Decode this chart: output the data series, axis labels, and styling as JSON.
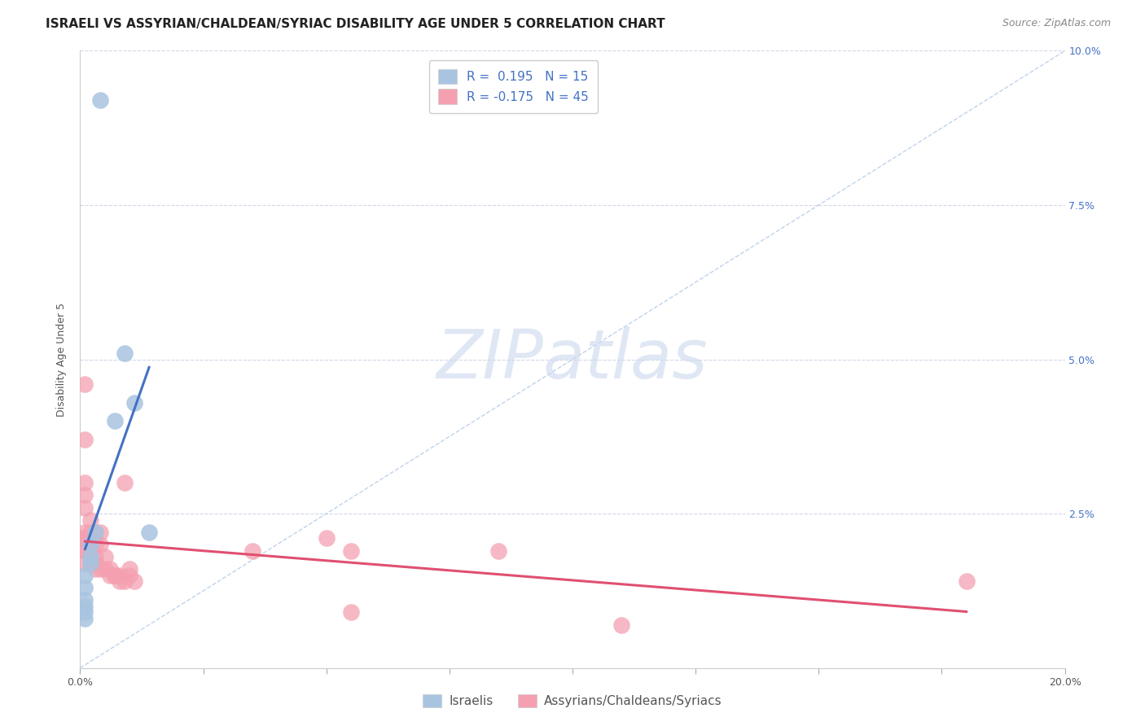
{
  "title": "ISRAELI VS ASSYRIAN/CHALDEAN/SYRIAC DISABILITY AGE UNDER 5 CORRELATION CHART",
  "source": "Source: ZipAtlas.com",
  "ylabel": "Disability Age Under 5",
  "xlim": [
    0,
    0.2
  ],
  "ylim": [
    0,
    0.1
  ],
  "xticks": [
    0.0,
    0.025,
    0.05,
    0.075,
    0.1,
    0.125,
    0.15,
    0.175,
    0.2
  ],
  "xtick_labels_show": [
    "0.0%",
    "",
    "",
    "",
    "",
    "",
    "",
    "",
    "20.0%"
  ],
  "yticks": [
    0.0,
    0.025,
    0.05,
    0.075,
    0.1
  ],
  "ytick_labels_left": [
    "",
    "",
    "",
    "",
    ""
  ],
  "ytick_labels_right": [
    "",
    "2.5%",
    "5.0%",
    "7.5%",
    "10.0%"
  ],
  "legend_labels": [
    "Israelis",
    "Assyrians/Chaldeans/Syriacs"
  ],
  "israeli_R": 0.195,
  "israeli_N": 15,
  "assyrian_R": -0.175,
  "assyrian_N": 45,
  "israeli_color": "#a8c4e0",
  "assyrian_color": "#f4a0b0",
  "israeli_line_color": "#4472c4",
  "assyrian_line_color": "#e05070",
  "ref_line_color": "#b8cfe8",
  "background_color": "#ffffff",
  "grid_color": "#d0d8e8",
  "israeli_points": [
    [
      0.004,
      0.092
    ],
    [
      0.009,
      0.051
    ],
    [
      0.011,
      0.043
    ],
    [
      0.007,
      0.04
    ],
    [
      0.014,
      0.022
    ],
    [
      0.002,
      0.02
    ],
    [
      0.003,
      0.022
    ],
    [
      0.002,
      0.018
    ],
    [
      0.002,
      0.017
    ],
    [
      0.001,
      0.015
    ],
    [
      0.001,
      0.013
    ],
    [
      0.001,
      0.011
    ],
    [
      0.001,
      0.01
    ],
    [
      0.001,
      0.009
    ],
    [
      0.001,
      0.008
    ]
  ],
  "assyrian_points": [
    [
      0.001,
      0.046
    ],
    [
      0.001,
      0.037
    ],
    [
      0.001,
      0.03
    ],
    [
      0.001,
      0.028
    ],
    [
      0.001,
      0.026
    ],
    [
      0.002,
      0.024
    ],
    [
      0.001,
      0.022
    ],
    [
      0.002,
      0.022
    ],
    [
      0.001,
      0.021
    ],
    [
      0.001,
      0.021
    ],
    [
      0.002,
      0.02
    ],
    [
      0.002,
      0.02
    ],
    [
      0.001,
      0.019
    ],
    [
      0.001,
      0.019
    ],
    [
      0.002,
      0.019
    ],
    [
      0.003,
      0.022
    ],
    [
      0.003,
      0.02
    ],
    [
      0.003,
      0.018
    ],
    [
      0.004,
      0.022
    ],
    [
      0.004,
      0.02
    ],
    [
      0.001,
      0.017
    ],
    [
      0.002,
      0.017
    ],
    [
      0.003,
      0.017
    ],
    [
      0.003,
      0.016
    ],
    [
      0.004,
      0.016
    ],
    [
      0.005,
      0.018
    ],
    [
      0.005,
      0.016
    ],
    [
      0.006,
      0.016
    ],
    [
      0.006,
      0.015
    ],
    [
      0.007,
      0.015
    ],
    [
      0.007,
      0.015
    ],
    [
      0.008,
      0.015
    ],
    [
      0.008,
      0.014
    ],
    [
      0.009,
      0.014
    ],
    [
      0.009,
      0.03
    ],
    [
      0.01,
      0.016
    ],
    [
      0.01,
      0.015
    ],
    [
      0.011,
      0.014
    ],
    [
      0.035,
      0.019
    ],
    [
      0.05,
      0.021
    ],
    [
      0.055,
      0.009
    ],
    [
      0.085,
      0.019
    ],
    [
      0.11,
      0.007
    ],
    [
      0.18,
      0.014
    ],
    [
      0.055,
      0.019
    ]
  ],
  "title_fontsize": 11,
  "source_fontsize": 9,
  "axis_label_fontsize": 9,
  "tick_fontsize": 9,
  "legend_fontsize": 11,
  "watermark_text": "ZIPatlas",
  "watermark_fontsize": 60
}
